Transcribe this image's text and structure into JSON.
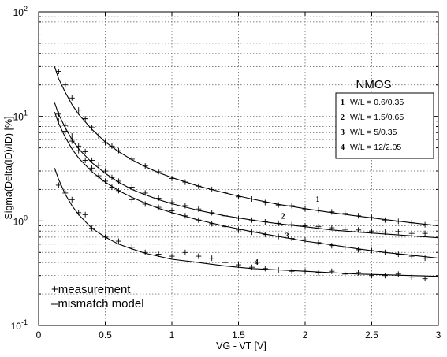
{
  "chart_data": {
    "type": "line",
    "xlabel": "VG - VT  [V]",
    "ylabel": "Sigma(Delta(ID)/ID)  [%]",
    "xlim": [
      0,
      3
    ],
    "ylim": [
      0.1,
      100
    ],
    "yscale": "log",
    "grid": true,
    "x_ticks": [
      "0",
      "0.5",
      "1",
      "1.5",
      "2",
      "2.5",
      "3"
    ],
    "y_ticks": [
      {
        "base": "10",
        "exp": "-1"
      },
      {
        "base": "10",
        "exp": "0"
      },
      {
        "base": "10",
        "exp": "1"
      },
      {
        "base": "10",
        "exp": "2"
      }
    ],
    "legend_title": "NMOS",
    "legend_position": "right",
    "series": [
      {
        "name": "W/L = 0.6/0.35",
        "label": "1",
        "label_x": 2.08,
        "label_y": 1.52,
        "model_x": [
          0.12,
          0.15,
          0.2,
          0.25,
          0.3,
          0.4,
          0.5,
          0.6,
          0.7,
          0.8,
          0.9,
          1.0,
          1.2,
          1.4,
          1.6,
          1.8,
          2.0,
          2.2,
          2.4,
          2.6,
          2.8,
          3.0
        ],
        "model_y": [
          30.0,
          23.0,
          17.0,
          13.0,
          10.5,
          7.5,
          5.7,
          4.6,
          3.85,
          3.3,
          2.9,
          2.6,
          2.15,
          1.85,
          1.62,
          1.44,
          1.31,
          1.2,
          1.11,
          1.03,
          0.96,
          0.9
        ],
        "meas_x": [
          0.15,
          0.2,
          0.25,
          0.3,
          0.35,
          0.4,
          0.45,
          0.5,
          0.55,
          0.6,
          0.7,
          0.8,
          0.9,
          1.0,
          1.1,
          1.2,
          1.3,
          1.4,
          1.5,
          1.6,
          1.7,
          1.8,
          1.9,
          2.0,
          2.1,
          2.2,
          2.3,
          2.4,
          2.5,
          2.6,
          2.7,
          2.8,
          2.9
        ],
        "meas_y": [
          27.0,
          20.0,
          15.0,
          11.5,
          9.5,
          7.8,
          6.5,
          5.6,
          5.2,
          4.7,
          3.9,
          3.35,
          2.95,
          2.55,
          2.35,
          2.15,
          2.0,
          1.88,
          1.7,
          1.62,
          1.5,
          1.42,
          1.4,
          1.3,
          1.27,
          1.22,
          1.18,
          1.12,
          1.08,
          1.02,
          0.99,
          0.96,
          0.92
        ]
      },
      {
        "name": "W/L = 1.5/0.65",
        "label": "2",
        "label_x": 1.82,
        "label_y": 1.05,
        "model_x": [
          0.12,
          0.15,
          0.2,
          0.25,
          0.3,
          0.4,
          0.5,
          0.6,
          0.7,
          0.8,
          0.9,
          1.0,
          1.2,
          1.4,
          1.6,
          1.8,
          2.0,
          2.2,
          2.4,
          2.6,
          2.8,
          3.0
        ],
        "model_y": [
          13.5,
          10.5,
          7.8,
          6.0,
          4.9,
          3.6,
          2.85,
          2.35,
          2.0,
          1.78,
          1.6,
          1.46,
          1.26,
          1.12,
          1.02,
          0.94,
          0.88,
          0.82,
          0.78,
          0.75,
          0.72,
          0.69
        ],
        "meas_x": [
          0.15,
          0.2,
          0.25,
          0.3,
          0.35,
          0.4,
          0.45,
          0.5,
          0.55,
          0.6,
          0.7,
          0.8,
          0.9,
          1.0,
          1.1,
          1.2,
          1.3,
          1.4,
          1.5,
          1.6,
          1.7,
          1.8,
          1.9,
          2.0,
          2.1,
          2.2,
          2.3,
          2.4,
          2.5,
          2.6,
          2.7,
          2.8,
          2.9
        ],
        "meas_y": [
          10.5,
          8.2,
          6.5,
          5.2,
          4.6,
          3.8,
          3.4,
          3.0,
          2.6,
          2.4,
          2.1,
          1.85,
          1.65,
          1.5,
          1.4,
          1.3,
          1.2,
          1.12,
          1.06,
          1.02,
          0.98,
          0.95,
          0.92,
          0.9,
          0.88,
          0.86,
          0.83,
          0.82,
          0.8,
          0.78,
          0.79,
          0.76,
          0.76
        ]
      },
      {
        "name": "W/L = 5/0.35",
        "label": "3",
        "label_x": 1.85,
        "label_y": 0.68,
        "model_x": [
          0.12,
          0.15,
          0.2,
          0.25,
          0.3,
          0.4,
          0.5,
          0.6,
          0.7,
          0.8,
          0.9,
          1.0,
          1.2,
          1.4,
          1.6,
          1.8,
          2.0,
          2.2,
          2.4,
          2.6,
          2.8,
          3.0
        ],
        "model_y": [
          11.0,
          8.6,
          6.3,
          4.9,
          4.0,
          2.95,
          2.35,
          1.95,
          1.68,
          1.48,
          1.32,
          1.2,
          1.02,
          0.89,
          0.79,
          0.71,
          0.64,
          0.59,
          0.54,
          0.5,
          0.47,
          0.44
        ],
        "meas_x": [
          0.15,
          0.2,
          0.25,
          0.3,
          0.35,
          0.4,
          0.45,
          0.5,
          0.55,
          0.6,
          0.7,
          0.8,
          0.9,
          1.0,
          1.1,
          1.2,
          1.3,
          1.4,
          1.5,
          1.6,
          1.7,
          1.8,
          1.9,
          2.0,
          2.1,
          2.2,
          2.3,
          2.4,
          2.5,
          2.6,
          2.7,
          2.8,
          2.9
        ],
        "meas_y": [
          9.0,
          7.2,
          5.8,
          4.7,
          3.8,
          3.2,
          2.7,
          2.4,
          2.1,
          1.95,
          1.6,
          1.45,
          1.35,
          1.25,
          1.12,
          1.02,
          0.94,
          0.88,
          0.82,
          0.78,
          0.74,
          0.71,
          0.68,
          0.66,
          0.62,
          0.58,
          0.56,
          0.53,
          0.52,
          0.5,
          0.48,
          0.46,
          0.44
        ]
      },
      {
        "name": "W/L = 12/2.05",
        "label": "4",
        "label_x": 1.62,
        "label_y": 0.38,
        "model_x": [
          0.12,
          0.15,
          0.2,
          0.25,
          0.3,
          0.4,
          0.5,
          0.6,
          0.7,
          0.8,
          0.9,
          1.0,
          1.2,
          1.4,
          1.6,
          1.8,
          2.0,
          2.2,
          2.4,
          2.6,
          2.8,
          3.0
        ],
        "model_y": [
          3.2,
          2.5,
          1.8,
          1.4,
          1.15,
          0.85,
          0.7,
          0.6,
          0.54,
          0.49,
          0.46,
          0.43,
          0.4,
          0.37,
          0.35,
          0.34,
          0.33,
          0.32,
          0.31,
          0.305,
          0.3,
          0.295
        ],
        "meas_x": [
          0.15,
          0.2,
          0.25,
          0.3,
          0.35,
          0.4,
          0.5,
          0.6,
          0.7,
          0.8,
          0.9,
          1.0,
          1.1,
          1.2,
          1.3,
          1.4,
          1.5,
          1.6,
          1.7,
          1.8,
          1.9,
          2.0,
          2.1,
          2.2,
          2.3,
          2.4,
          2.5,
          2.6,
          2.7,
          2.8,
          2.9
        ],
        "meas_y": [
          2.2,
          1.85,
          1.6,
          1.2,
          1.15,
          0.85,
          0.7,
          0.64,
          0.56,
          0.5,
          0.48,
          0.46,
          0.5,
          0.46,
          0.44,
          0.4,
          0.38,
          0.36,
          0.35,
          0.34,
          0.33,
          0.33,
          0.32,
          0.33,
          0.31,
          0.32,
          0.3,
          0.3,
          0.31,
          0.29,
          0.28
        ]
      }
    ],
    "annotations": [
      "+measurement",
      "–mismatch model"
    ]
  }
}
